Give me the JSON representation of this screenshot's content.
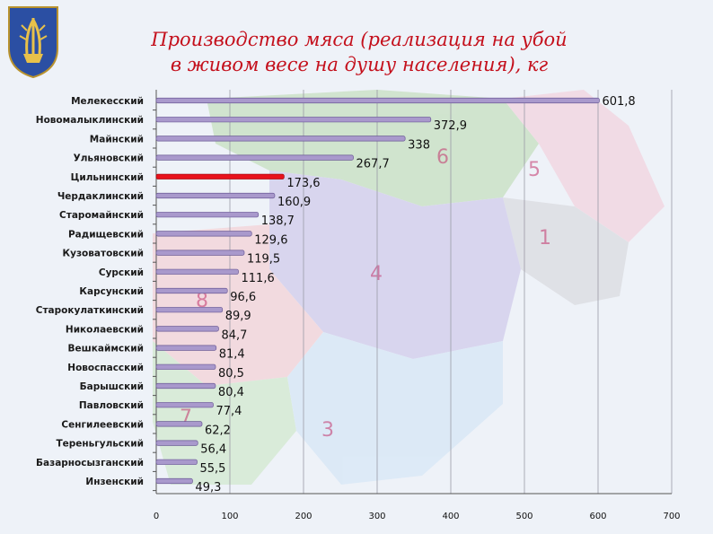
{
  "title_line1": "Производство мяса (реализация на убой",
  "title_line2": "в живом весе на душу населения), кг",
  "map_region_numbers": [
    "6",
    "5",
    "1",
    "4",
    "3",
    "7",
    "8"
  ],
  "colors": {
    "bar": "#a999cc",
    "bar_edge": "#6b5a96",
    "highlight": "#e8121c",
    "title": "#c4101c"
  },
  "chart_data": {
    "type": "bar",
    "orientation": "horizontal",
    "title": "Производство мяса (реализация на убой в живом весе на душу населения), кг",
    "categories": [
      "Мелекесский",
      "Новомалыклинский",
      "Майнский",
      "Ульяновский",
      "Цильнинский",
      "Чердаклинский",
      "Старомайнский",
      "Радищевский",
      "Кузоватовский",
      "Сурский",
      "Карсунский",
      "Старокулаткинский",
      "Николаевский",
      "Вешкаймский",
      "Новоспасский",
      "Барышский",
      "Павловский",
      "Сенгилеевский",
      "Тереньгульский",
      "Базарносызганский",
      "Инзенский"
    ],
    "values": [
      601.8,
      372.9,
      338,
      267.7,
      173.6,
      160.9,
      138.7,
      129.6,
      119.5,
      111.6,
      96.6,
      89.9,
      84.7,
      81.4,
      80.5,
      80.4,
      77.4,
      62.2,
      56.4,
      55.5,
      49.3
    ],
    "value_labels": [
      "601,8",
      "372,9",
      "338",
      "267,7",
      "173,6",
      "160,9",
      "138,7",
      "129,6",
      "119,5",
      "111,6",
      "96,6",
      "89,9",
      "84,7",
      "81,4",
      "80,5",
      "80,4",
      "77,4",
      "62,2",
      "56,4",
      "55,5",
      "49,3"
    ],
    "highlighted_category": "Цильнинский",
    "xlim": [
      0,
      700
    ],
    "xticks": [
      0,
      100,
      200,
      300,
      400,
      500,
      600,
      700
    ],
    "grid": true,
    "legend": "none"
  }
}
